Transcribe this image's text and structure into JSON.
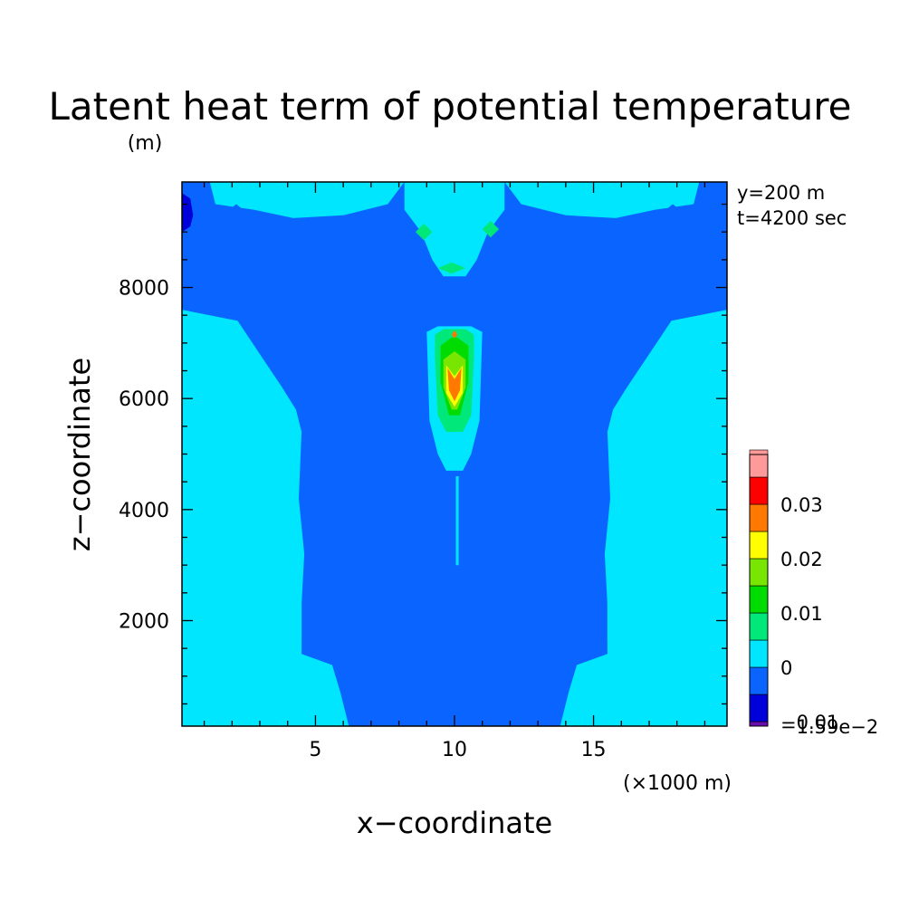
{
  "chart_data": {
    "type": "contour",
    "title": "Latent heat term of potential temperature",
    "xlabel": "x−coordinate",
    "ylabel": "z−coordinate",
    "x_unit": "(×1000 m)",
    "y_unit": "(m)",
    "annotations": [
      "y=200 m",
      "t=4200 sec"
    ],
    "xlim": [
      0.2,
      19.8
    ],
    "ylim": [
      100,
      9900
    ],
    "x_ticks": [
      "5",
      "10",
      "15"
    ],
    "x_tick_values": [
      5,
      10,
      15
    ],
    "y_ticks": [
      "2000",
      "4000",
      "6000",
      "8000"
    ],
    "y_tick_values": [
      2000,
      4000,
      6000,
      8000
    ],
    "x_minor_step": 1,
    "y_minor_step": 500,
    "colorbar": {
      "levels": [
        -0.0159,
        -0.01,
        -0.005,
        0,
        0.005,
        0.01,
        0.015,
        0.02,
        0.025,
        0.03,
        0.035
      ],
      "colors": [
        "#6a0dad",
        "#0000d8",
        "#0a64ff",
        "#00e6ff",
        "#00e87a",
        "#00dc00",
        "#78e600",
        "#ffff00",
        "#ff7800",
        "#ff0000",
        "#ff9a9a"
      ],
      "tick_labels": [
        "0.03",
        "0.02",
        "0.01",
        "0",
        "−0.01",
        "−1.59e−2"
      ],
      "tick_values": [
        0.03,
        0.02,
        0.01,
        0,
        -0.01,
        -0.0159
      ]
    },
    "regions": [
      {
        "level": -0.005,
        "points": [
          [
            0.2,
            9900
          ],
          [
            19.8,
            9900
          ],
          [
            19.8,
            100
          ],
          [
            0.2,
            100
          ]
        ]
      },
      {
        "level": 0,
        "points": [
          [
            0.2,
            100
          ],
          [
            6.2,
            100
          ],
          [
            5.9,
            700
          ],
          [
            5.6,
            1200
          ],
          [
            4.5,
            1400
          ],
          [
            4.5,
            2300
          ],
          [
            4.6,
            3200
          ],
          [
            4.4,
            4200
          ],
          [
            4.5,
            5400
          ],
          [
            4.3,
            5800
          ],
          [
            3.8,
            6200
          ],
          [
            3.0,
            6800
          ],
          [
            2.2,
            7400
          ],
          [
            0.2,
            7600
          ]
        ]
      },
      {
        "level": 0,
        "points": [
          [
            19.8,
            100
          ],
          [
            13.8,
            100
          ],
          [
            14.1,
            700
          ],
          [
            14.4,
            1200
          ],
          [
            15.5,
            1400
          ],
          [
            15.5,
            2300
          ],
          [
            15.4,
            3200
          ],
          [
            15.6,
            4200
          ],
          [
            15.5,
            5400
          ],
          [
            15.7,
            5800
          ],
          [
            16.2,
            6200
          ],
          [
            17.0,
            6800
          ],
          [
            17.8,
            7400
          ],
          [
            19.8,
            7600
          ]
        ]
      },
      {
        "level": 0,
        "points": [
          [
            0.2,
            2300
          ],
          [
            0.9,
            2050
          ],
          [
            2.4,
            1850
          ],
          [
            4.5,
            1650
          ],
          [
            4.5,
            2500
          ],
          [
            3.0,
            2300
          ],
          [
            1.2,
            2350
          ],
          [
            0.2,
            2800
          ]
        ]
      },
      {
        "level": 0,
        "points": [
          [
            19.8,
            2300
          ],
          [
            19.1,
            2050
          ],
          [
            17.6,
            1850
          ],
          [
            15.5,
            1650
          ],
          [
            15.5,
            2500
          ],
          [
            17.0,
            2300
          ],
          [
            18.8,
            2350
          ],
          [
            19.8,
            2800
          ]
        ]
      },
      {
        "level": 0,
        "points": [
          [
            1.2,
            9900
          ],
          [
            8.2,
            9900
          ],
          [
            7.6,
            9500
          ],
          [
            6.0,
            9300
          ],
          [
            4.2,
            9250
          ],
          [
            2.8,
            9400
          ],
          [
            1.4,
            9500
          ]
        ]
      },
      {
        "level": 0,
        "points": [
          [
            18.8,
            9900
          ],
          [
            11.8,
            9900
          ],
          [
            12.4,
            9500
          ],
          [
            14.0,
            9300
          ],
          [
            15.8,
            9250
          ],
          [
            17.2,
            9400
          ],
          [
            18.6,
            9500
          ]
        ]
      },
      {
        "level": 0,
        "points": [
          [
            8.2,
            9900
          ],
          [
            11.8,
            9900
          ],
          [
            11.8,
            9400
          ],
          [
            11.2,
            9000
          ],
          [
            10.8,
            8500
          ],
          [
            10.4,
            8200
          ],
          [
            9.6,
            8200
          ],
          [
            9.2,
            8500
          ],
          [
            8.8,
            9000
          ],
          [
            8.2,
            9400
          ]
        ]
      },
      {
        "level": 0,
        "points": [
          [
            9.0,
            7200
          ],
          [
            9.4,
            7300
          ],
          [
            10.6,
            7300
          ],
          [
            11.0,
            7200
          ],
          [
            10.9,
            5600
          ],
          [
            10.6,
            5000
          ],
          [
            10.3,
            4700
          ],
          [
            9.7,
            4700
          ],
          [
            9.4,
            5000
          ],
          [
            9.1,
            5600
          ]
        ]
      },
      {
        "level": 0,
        "points": [
          [
            10.05,
            4600
          ],
          [
            10.15,
            4600
          ],
          [
            10.15,
            3000
          ],
          [
            10.05,
            3000
          ]
        ]
      },
      {
        "level": 0.005,
        "points": [
          [
            9.3,
            7150
          ],
          [
            9.6,
            7250
          ],
          [
            10.4,
            7250
          ],
          [
            10.7,
            7150
          ],
          [
            10.7,
            6700
          ],
          [
            10.6,
            5700
          ],
          [
            10.3,
            5400
          ],
          [
            9.7,
            5400
          ],
          [
            9.4,
            5700
          ],
          [
            9.3,
            6700
          ]
        ]
      },
      {
        "level": 0.005,
        "points": [
          [
            8.6,
            9000
          ],
          [
            8.9,
            8850
          ],
          [
            9.2,
            9000
          ],
          [
            8.9,
            9150
          ]
        ]
      },
      {
        "level": 0.005,
        "points": [
          [
            11.0,
            9050
          ],
          [
            11.3,
            8900
          ],
          [
            11.6,
            9050
          ],
          [
            11.3,
            9200
          ]
        ]
      },
      {
        "level": 0.005,
        "points": [
          [
            9.4,
            8350
          ],
          [
            9.9,
            8250
          ],
          [
            10.4,
            8350
          ],
          [
            9.9,
            8450
          ]
        ]
      },
      {
        "level": 0.01,
        "points": [
          [
            9.5,
            6950
          ],
          [
            9.9,
            7100
          ],
          [
            10.1,
            7100
          ],
          [
            10.5,
            6950
          ],
          [
            10.5,
            6300
          ],
          [
            10.2,
            5700
          ],
          [
            9.8,
            5700
          ],
          [
            9.5,
            6300
          ]
        ]
      },
      {
        "level": 0.015,
        "points": [
          [
            9.6,
            6700
          ],
          [
            10.0,
            6850
          ],
          [
            10.4,
            6700
          ],
          [
            10.4,
            6200
          ],
          [
            10.1,
            5800
          ],
          [
            9.9,
            5800
          ],
          [
            9.6,
            6200
          ]
        ]
      },
      {
        "level": 0.02,
        "points": [
          [
            9.7,
            6600
          ],
          [
            10.0,
            6400
          ],
          [
            10.3,
            6600
          ],
          [
            10.3,
            6100
          ],
          [
            10.0,
            5850
          ],
          [
            9.7,
            6100
          ]
        ]
      },
      {
        "level": 0.025,
        "points": [
          [
            9.75,
            6550
          ],
          [
            10.0,
            6350
          ],
          [
            10.25,
            6550
          ],
          [
            10.2,
            6150
          ],
          [
            10.0,
            5950
          ],
          [
            9.8,
            6150
          ]
        ]
      },
      {
        "level": 0.025,
        "points": [
          [
            9.9,
            7150
          ],
          [
            10.0,
            7230
          ],
          [
            10.1,
            7150
          ],
          [
            10.0,
            7080
          ]
        ]
      },
      {
        "level": -0.01,
        "points": [
          [
            0.2,
            9700
          ],
          [
            0.5,
            9600
          ],
          [
            0.6,
            9300
          ],
          [
            0.5,
            9100
          ],
          [
            0.2,
            9000
          ]
        ]
      },
      {
        "level": -0.005,
        "points": [
          [
            9.15,
            4450
          ],
          [
            9.35,
            4700
          ],
          [
            9.55,
            4450
          ],
          [
            9.35,
            4200
          ]
        ]
      },
      {
        "level": -0.005,
        "points": [
          [
            10.65,
            4450
          ],
          [
            10.85,
            4700
          ],
          [
            11.05,
            4450
          ],
          [
            10.85,
            4200
          ]
        ]
      },
      {
        "level": -0.005,
        "points": [
          [
            9.2,
            3400
          ],
          [
            9.32,
            3550
          ],
          [
            9.44,
            3400
          ],
          [
            9.32,
            3250
          ]
        ]
      },
      {
        "level": -0.005,
        "points": [
          [
            10.76,
            3400
          ],
          [
            10.88,
            3550
          ],
          [
            11.0,
            3400
          ],
          [
            10.88,
            3250
          ]
        ]
      },
      {
        "level": -0.005,
        "points": [
          [
            9.25,
            3950
          ],
          [
            9.35,
            4050
          ],
          [
            9.45,
            3950
          ],
          [
            9.35,
            3850
          ]
        ]
      },
      {
        "level": -0.005,
        "points": [
          [
            10.75,
            3950
          ],
          [
            10.85,
            4050
          ],
          [
            10.95,
            3950
          ],
          [
            10.85,
            3850
          ]
        ]
      },
      {
        "level": -0.005,
        "points": [
          [
            1.85,
            9380
          ],
          [
            2.15,
            9500
          ],
          [
            2.45,
            9380
          ]
        ]
      },
      {
        "level": -0.005,
        "points": [
          [
            17.55,
            9380
          ],
          [
            17.85,
            9500
          ],
          [
            18.15,
            9380
          ]
        ]
      },
      {
        "level": -0.005,
        "points": [
          [
            19.65,
            9700
          ],
          [
            19.8,
            9700
          ],
          [
            19.8,
            9100
          ],
          [
            19.65,
            9250
          ]
        ]
      }
    ]
  }
}
